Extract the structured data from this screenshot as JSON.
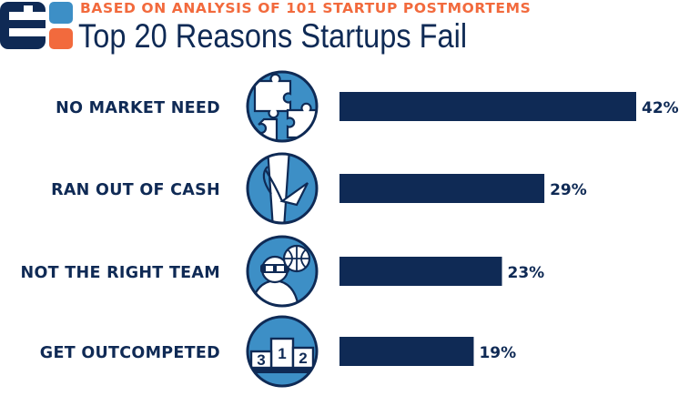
{
  "header": {
    "subtitle": "BASED ON ANALYSIS OF 101 STARTUP POSTMORTEMS",
    "title": "Top 20 Reasons Startups Fail"
  },
  "colors": {
    "navy": "#0f2a55",
    "orange": "#f26a3d",
    "blue": "#3d8fc6",
    "icon_fill": "#3d8fc6"
  },
  "chart_data": {
    "type": "bar",
    "orientation": "horizontal",
    "title": "Top 20 Reasons Startups Fail",
    "subtitle": "BASED ON ANALYSIS OF 101 STARTUP POSTMORTEMS",
    "categories": [
      "NO MARKET NEED",
      "RAN OUT OF CASH",
      "NOT THE RIGHT TEAM",
      "GET OUTCOMPETED"
    ],
    "values": [
      42,
      29,
      23,
      19
    ],
    "value_labels": [
      "42%",
      "29%",
      "23%",
      "19%"
    ],
    "icons": [
      "puzzle-icon",
      "money-hand-icon",
      "team-icon",
      "podium-icon"
    ],
    "podium_labels": [
      "1",
      "2",
      "3"
    ],
    "xlim": [
      0,
      42
    ],
    "grid": false,
    "legend": "none"
  }
}
